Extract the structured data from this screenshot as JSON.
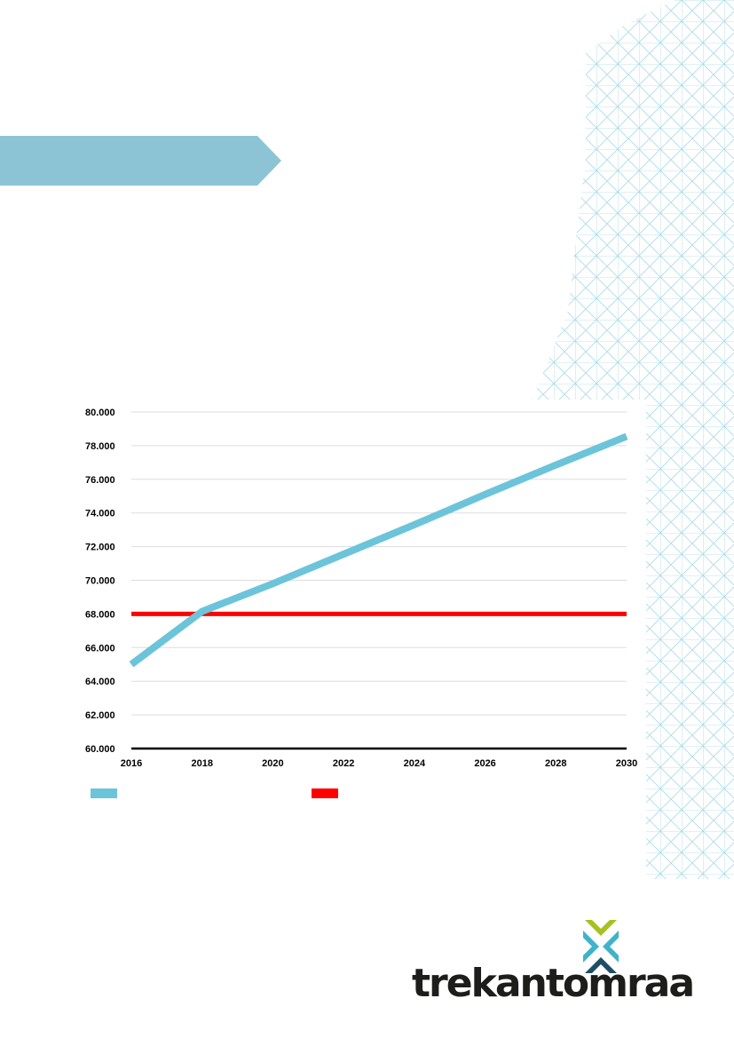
{
  "brand": {
    "name": "trekantomraadet",
    "colors": {
      "lime": "#a5c21e",
      "teal": "#3fb3c9",
      "navy": "#1f4e64",
      "text": "#1d1d1b"
    }
  },
  "colors": {
    "banner": "#8cc4d6",
    "pattern": "#a9dbe8",
    "gridline": "#dddddd",
    "axis": "#000000"
  },
  "chart_data": {
    "type": "line",
    "title": "",
    "xlabel": "",
    "ylabel": "",
    "xlim": [
      2016,
      2030
    ],
    "ylim": [
      60000,
      80000
    ],
    "x_ticks": [
      2016,
      2018,
      2020,
      2022,
      2024,
      2026,
      2028,
      2030
    ],
    "x_tick_labels": [
      "2016",
      "2018",
      "2020",
      "2022",
      "2024",
      "2026",
      "2028",
      "2030"
    ],
    "y_ticks": [
      60000,
      62000,
      64000,
      66000,
      68000,
      70000,
      72000,
      74000,
      76000,
      78000,
      80000
    ],
    "y_tick_labels": [
      "60.000",
      "62.000",
      "64.000",
      "66.000",
      "68.000",
      "70.000",
      "72.000",
      "74.000",
      "76.000",
      "78.000",
      "80.000"
    ],
    "grid": true,
    "legend_position": "bottom-left",
    "series": [
      {
        "name": "",
        "color": "#6cc4da",
        "x": [
          2016,
          2018,
          2020,
          2022,
          2024,
          2026,
          2028,
          2030
        ],
        "values": [
          65000,
          68150,
          69800,
          71550,
          73300,
          75100,
          76850,
          78550
        ]
      },
      {
        "name": "",
        "color": "#ff0000",
        "x": [
          2016,
          2030
        ],
        "values": [
          68000,
          68000
        ]
      }
    ]
  }
}
